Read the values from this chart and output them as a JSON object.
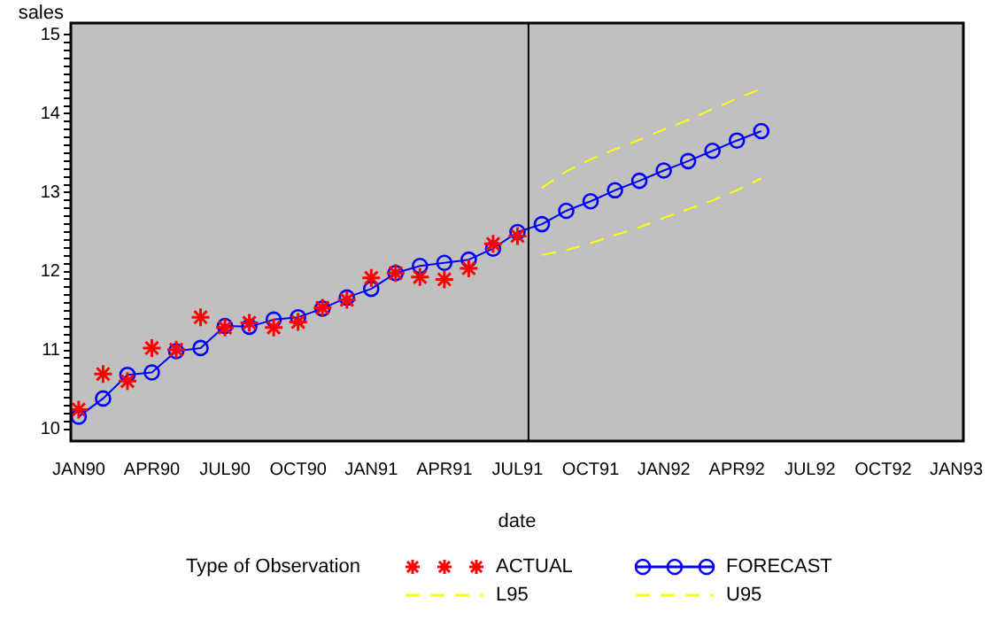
{
  "chart_data": {
    "type": "line",
    "xlabel": "date",
    "ylabel": "sales",
    "legend_title": "Type of Observation",
    "legend": "bottom",
    "grid": false,
    "xlim": [
      "1989-12-22",
      "1993-01-10"
    ],
    "xticks": [
      {
        "value": "1990-01",
        "label": "JAN90"
      },
      {
        "value": "1990-04",
        "label": "APR90"
      },
      {
        "value": "1990-07",
        "label": "JUL90"
      },
      {
        "value": "1990-10",
        "label": "OCT90"
      },
      {
        "value": "1991-01",
        "label": "JAN91"
      },
      {
        "value": "1991-04",
        "label": "APR91"
      },
      {
        "value": "1991-07",
        "label": "JUL91"
      },
      {
        "value": "1991-10",
        "label": "OCT91"
      },
      {
        "value": "1992-01",
        "label": "JAN92"
      },
      {
        "value": "1992-04",
        "label": "APR92"
      },
      {
        "value": "1992-07",
        "label": "JUL92"
      },
      {
        "value": "1992-10",
        "label": "OCT92"
      },
      {
        "value": "1993-01",
        "label": "JAN93"
      }
    ],
    "ylim": [
      9.85,
      15.15
    ],
    "yticks": [
      10,
      {
        "value": 10.1,
        "label": null
      },
      {
        "value": 10.2,
        "label": null
      },
      {
        "value": 10.3,
        "label": null
      },
      {
        "value": 10.4,
        "label": null
      },
      {
        "value": 10.5,
        "label": null
      },
      {
        "value": 10.6,
        "label": null
      },
      {
        "value": 10.7,
        "label": null
      },
      {
        "value": 10.8,
        "label": null
      },
      {
        "value": 10.9,
        "label": null
      },
      11,
      {
        "value": 11.1,
        "label": null
      },
      {
        "value": 11.2,
        "label": null
      },
      {
        "value": 11.3,
        "label": null
      },
      {
        "value": 11.4,
        "label": null
      },
      {
        "value": 11.5,
        "label": null
      },
      {
        "value": 11.6,
        "label": null
      },
      {
        "value": 11.7,
        "label": null
      },
      {
        "value": 11.8,
        "label": null
      },
      {
        "value": 11.9,
        "label": null
      },
      12,
      {
        "value": 12.1,
        "label": null
      },
      {
        "value": 12.2,
        "label": null
      },
      {
        "value": 12.3,
        "label": null
      },
      {
        "value": 12.4,
        "label": null
      },
      {
        "value": 12.5,
        "label": null
      },
      {
        "value": 12.6,
        "label": null
      },
      {
        "value": 12.7,
        "label": null
      },
      {
        "value": 12.8,
        "label": null
      },
      {
        "value": 12.9,
        "label": null
      },
      13,
      {
        "value": 13.1,
        "label": null
      },
      {
        "value": 13.2,
        "label": null
      },
      {
        "value": 13.3,
        "label": null
      },
      {
        "value": 13.4,
        "label": null
      },
      {
        "value": 13.5,
        "label": null
      },
      {
        "value": 13.6,
        "label": null
      },
      {
        "value": 13.7,
        "label": null
      },
      {
        "value": 13.8,
        "label": null
      },
      {
        "value": 13.9,
        "label": null
      },
      14,
      {
        "value": 14.1,
        "label": null
      },
      {
        "value": 14.2,
        "label": null
      },
      {
        "value": 14.3,
        "label": null
      },
      {
        "value": 14.4,
        "label": null
      },
      {
        "value": 14.5,
        "label": null
      },
      {
        "value": 14.6,
        "label": null
      },
      {
        "value": 14.7,
        "label": null
      },
      {
        "value": 14.8,
        "label": null
      },
      {
        "value": 14.9,
        "label": null
      },
      15
    ],
    "ref_lines": [
      {
        "axis": "x",
        "value": "1991-07-15",
        "color": "#000000"
      }
    ],
    "series": [
      {
        "name": "ACTUAL",
        "type": "scatter",
        "color": "#ff0000",
        "marker": "cross",
        "x": [
          "1990-01",
          "1990-02",
          "1990-03",
          "1990-04",
          "1990-05",
          "1990-06",
          "1990-07",
          "1990-08",
          "1990-09",
          "1990-10",
          "1990-11",
          "1990-12",
          "1991-01",
          "1991-02",
          "1991-03",
          "1991-04",
          "1991-05",
          "1991-06",
          "1991-07"
        ],
        "values": [
          10.25,
          10.7,
          10.61,
          11.03,
          11.01,
          11.42,
          11.29,
          11.35,
          11.29,
          11.36,
          11.54,
          11.64,
          11.92,
          11.98,
          11.93,
          11.9,
          12.04,
          12.35,
          12.45
        ]
      },
      {
        "name": "FORECAST",
        "type": "line",
        "color": "#0000ff",
        "marker": "circle",
        "line_style": "solid",
        "x": [
          "1990-01",
          "1990-02",
          "1990-03",
          "1990-04",
          "1990-05",
          "1990-06",
          "1990-07",
          "1990-08",
          "1990-09",
          "1990-10",
          "1990-11",
          "1990-12",
          "1991-01",
          "1991-02",
          "1991-03",
          "1991-04",
          "1991-05",
          "1991-06",
          "1991-07",
          "1991-08",
          "1991-09",
          "1991-10",
          "1991-11",
          "1991-12",
          "1992-01",
          "1992-02",
          "1992-03",
          "1992-04",
          "1992-05"
        ],
        "values": [
          10.16,
          10.39,
          10.69,
          10.72,
          10.99,
          11.03,
          11.31,
          11.3,
          11.39,
          11.42,
          11.53,
          11.67,
          11.78,
          11.98,
          12.07,
          12.11,
          12.15,
          12.29,
          12.5,
          12.6,
          12.77,
          12.89,
          13.03,
          13.15,
          13.28,
          13.4,
          13.53,
          13.66,
          13.78
        ]
      },
      {
        "name": "L95",
        "type": "line",
        "color": "#ffff00",
        "marker": "none",
        "line_style": "dashed",
        "x": [
          "1991-08",
          "1991-09",
          "1991-10",
          "1991-11",
          "1991-12",
          "1992-01",
          "1992-02",
          "1992-03",
          "1992-04",
          "1992-05"
        ],
        "values": [
          12.21,
          12.27,
          12.36,
          12.46,
          12.56,
          12.68,
          12.79,
          12.9,
          13.03,
          13.18
        ]
      },
      {
        "name": "U95",
        "type": "line",
        "color": "#ffff00",
        "marker": "none",
        "line_style": "dashed",
        "x": [
          "1991-08",
          "1991-09",
          "1991-10",
          "1991-11",
          "1991-12",
          "1992-01",
          "1992-02",
          "1992-03",
          "1992-04",
          "1992-05"
        ],
        "values": [
          13.06,
          13.27,
          13.42,
          13.55,
          13.67,
          13.8,
          13.92,
          14.06,
          14.19,
          14.32
        ]
      }
    ]
  }
}
